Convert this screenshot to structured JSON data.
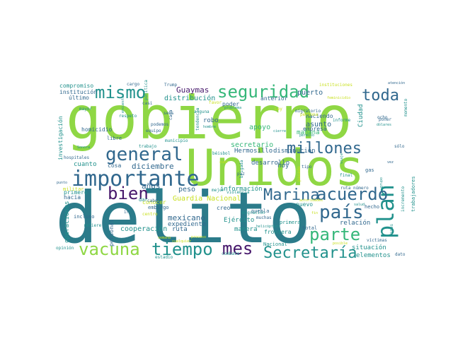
{
  "palette": {
    "dark_purple": "#46176b",
    "blue": "#31688e",
    "teal_dark": "#2b7b8a",
    "teal": "#21918c",
    "green": "#35b779",
    "lime": "#8fd744",
    "yellow": "#c8e020"
  },
  "words": [
    {
      "text": "delito",
      "color": "teal_dark"
    },
    {
      "text": "gobierno",
      "color": "lime"
    },
    {
      "text": "Unidos",
      "color": "lime"
    },
    {
      "text": "importante",
      "color": "blue"
    },
    {
      "text": "general",
      "color": "blue"
    },
    {
      "text": "seguridad",
      "color": "green"
    },
    {
      "text": "mismo",
      "color": "teal"
    },
    {
      "text": "toda",
      "color": "blue"
    },
    {
      "text": "millones",
      "color": "blue"
    },
    {
      "text": "bien",
      "color": "dark_purple"
    },
    {
      "text": "país",
      "color": "blue"
    },
    {
      "text": "plan",
      "color": "teal"
    },
    {
      "text": "parte",
      "color": "green"
    },
    {
      "text": "acuerdo",
      "color": "blue"
    },
    {
      "text": "Marina",
      "color": "blue"
    },
    {
      "text": "vacuna",
      "color": "lime"
    },
    {
      "text": "tiempo",
      "color": "teal"
    },
    {
      "text": "mes",
      "color": "dark_purple"
    },
    {
      "text": "Secretaría",
      "color": "teal"
    },
    {
      "text": "Guaymas",
      "color": "dark_purple"
    },
    {
      "text": "distribución",
      "color": "teal"
    },
    {
      "text": "puerto",
      "color": "blue"
    },
    {
      "text": "compromiso",
      "color": "teal"
    },
    {
      "text": "institución",
      "color": "blue"
    },
    {
      "text": "último",
      "color": "blue"
    },
    {
      "text": "diciembre",
      "color": "blue"
    },
    {
      "text": "apoyo",
      "color": "green"
    },
    {
      "text": "asunto",
      "color": "blue"
    },
    {
      "text": "robo",
      "color": "blue"
    },
    {
      "text": "mañana",
      "color": "green"
    },
    {
      "text": "Haciendo",
      "color": "blue"
    },
    {
      "text": "secretario",
      "color": "green"
    },
    {
      "text": "disminución",
      "color": "blue"
    },
    {
      "text": "desarrollo",
      "color": "blue"
    },
    {
      "text": "Hermosillo",
      "color": "blue"
    },
    {
      "text": "homicidio",
      "color": "blue"
    },
    {
      "text": "hoy",
      "color": "blue"
    },
    {
      "text": "cuanto",
      "color": "teal"
    },
    {
      "text": "cosa",
      "color": "blue"
    },
    {
      "text": "primero",
      "color": "teal"
    },
    {
      "text": "años",
      "color": "blue"
    },
    {
      "text": "peso",
      "color": "blue"
    },
    {
      "text": "información",
      "color": "teal"
    },
    {
      "text": "Guardia Nacional",
      "color": "yellow"
    },
    {
      "text": "conocer",
      "color": "yellow"
    },
    {
      "text": "nuevo",
      "color": "teal"
    },
    {
      "text": "relación",
      "color": "blue"
    },
    {
      "text": "hecho",
      "color": "blue"
    },
    {
      "text": "cooperación",
      "color": "teal"
    },
    {
      "text": "ruta",
      "color": "blue"
    },
    {
      "text": "mexicano",
      "color": "blue"
    },
    {
      "text": "expediente",
      "color": "blue"
    },
    {
      "text": "Ejército",
      "color": "teal"
    },
    {
      "text": "manera",
      "color": "teal"
    },
    {
      "text": "creo",
      "color": "blue"
    },
    {
      "text": "puebla",
      "color": "blue"
    },
    {
      "text": "total",
      "color": "blue"
    },
    {
      "text": "frontera",
      "color": "teal"
    },
    {
      "text": "situación",
      "color": "teal"
    },
    {
      "text": "elementos",
      "color": "teal"
    },
    {
      "text": "Nacional",
      "color": "teal"
    },
    {
      "text": "operaciones",
      "color": "teal"
    },
    {
      "text": "personal",
      "color": "blue"
    },
    {
      "text": "militar",
      "color": "yellow"
    },
    {
      "text": "investigación",
      "color": "teal"
    },
    {
      "text": "empresa",
      "color": "blue"
    },
    {
      "text": "anterior",
      "color": "blue"
    },
    {
      "text": "poder",
      "color": "blue"
    },
    {
      "text": "instituciones",
      "color": "yellow"
    },
    {
      "text": "Ciudad",
      "color": "teal"
    },
    {
      "text": "trabajadores",
      "color": "teal"
    },
    {
      "text": "gas",
      "color": "blue"
    },
    {
      "text": "sólo",
      "color": "blue"
    },
    {
      "text": "casos",
      "color": "teal"
    },
    {
      "text": "víctimas",
      "color": "blue"
    },
    {
      "text": "estadio",
      "color": "teal"
    },
    {
      "text": "cargo",
      "color": "blue"
    },
    {
      "text": "tipo",
      "color": "blue"
    },
    {
      "text": "pasado",
      "color": "yellow"
    },
    {
      "text": "paz",
      "color": "blue"
    },
    {
      "text": "final",
      "color": "teal"
    },
    {
      "text": "momento",
      "color": "teal"
    },
    {
      "text": "informe",
      "color": "teal"
    },
    {
      "text": "dato",
      "color": "blue"
    },
    {
      "text": "respeto",
      "color": "teal"
    },
    {
      "text": "equipo",
      "color": "blue"
    },
    {
      "text": "podemos",
      "color": "blue"
    },
    {
      "text": "alguna",
      "color": "teal"
    },
    {
      "text": "libre",
      "color": "blue"
    },
    {
      "text": "municipio",
      "color": "teal"
    },
    {
      "text": "trabajo",
      "color": "teal"
    },
    {
      "text": "cabo",
      "color": "blue"
    },
    {
      "text": "dar",
      "color": "teal"
    },
    {
      "text": "embargo",
      "color": "blue"
    },
    {
      "text": "centro",
      "color": "yellow"
    },
    {
      "text": "hacia",
      "color": "blue"
    },
    {
      "text": "incluso",
      "color": "blue"
    },
    {
      "text": "refiere",
      "color": "teal"
    },
    {
      "text": "ir",
      "color": "blue"
    },
    {
      "text": "muchas",
      "color": "blue"
    },
    {
      "text": "helicóptero",
      "color": "teal"
    },
    {
      "text": "migración",
      "color": "teal"
    },
    {
      "text": "mayor",
      "color": "teal"
    },
    {
      "text": "Trump",
      "color": "blue"
    },
    {
      "text": "seis",
      "color": "blue"
    },
    {
      "text": "ocho",
      "color": "blue"
    },
    {
      "text": "poner",
      "color": "blue"
    },
    {
      "text": "dólares",
      "color": "teal"
    },
    {
      "text": "migratorio",
      "color": "blue"
    },
    {
      "text": "persona",
      "color": "yellow"
    },
    {
      "text": "cada",
      "color": "blue"
    },
    {
      "text": "casi",
      "color": "blue"
    },
    {
      "text": "Sonora",
      "color": "teal"
    },
    {
      "text": "hospitales",
      "color": "blue"
    },
    {
      "text": "béisbol",
      "color": "teal"
    },
    {
      "text": "brigada",
      "color": "teal"
    },
    {
      "text": "combate",
      "color": "teal"
    },
    {
      "text": "opinión",
      "color": "teal"
    },
    {
      "text": "ruta número",
      "color": "blue"
    },
    {
      "text": "atención",
      "color": "blue"
    },
    {
      "text": "mejor",
      "color": "teal"
    },
    {
      "text": "punto",
      "color": "blue"
    },
    {
      "text": "salud",
      "color": "teal"
    },
    {
      "text": "tendencia",
      "color": "teal"
    },
    {
      "text": "violencia",
      "color": "teal"
    },
    {
      "text": "favor",
      "color": "yellow"
    },
    {
      "text": "feminicidio",
      "color": "yellow"
    },
    {
      "text": "problema",
      "color": "teal"
    },
    {
      "text": "hombre",
      "color": "teal"
    },
    {
      "text": "cierre",
      "color": "teal"
    },
    {
      "text": "permiso",
      "color": "teal"
    },
    {
      "text": "incremento",
      "color": "teal"
    },
    {
      "text": "primera",
      "color": "teal"
    },
    {
      "text": "política",
      "color": "teal"
    },
    {
      "text": "Ley",
      "color": "yellow"
    },
    {
      "text": "cuál",
      "color": "yellow"
    },
    {
      "text": "autoridades",
      "color": "yellow"
    },
    {
      "text": "semana",
      "color": "yellow"
    },
    {
      "text": "cualquier",
      "color": "yellow"
    },
    {
      "text": "proceso",
      "color": "yellow"
    },
    {
      "text": "posible",
      "color": "yellow"
    },
    {
      "text": "grupo",
      "color": "teal"
    },
    {
      "text": "fin",
      "color": "yellow"
    },
    {
      "text": "vez",
      "color": "blue"
    },
    {
      "text": "viaje",
      "color": "teal"
    },
    {
      "text": "encuesta",
      "color": "teal"
    }
  ]
}
